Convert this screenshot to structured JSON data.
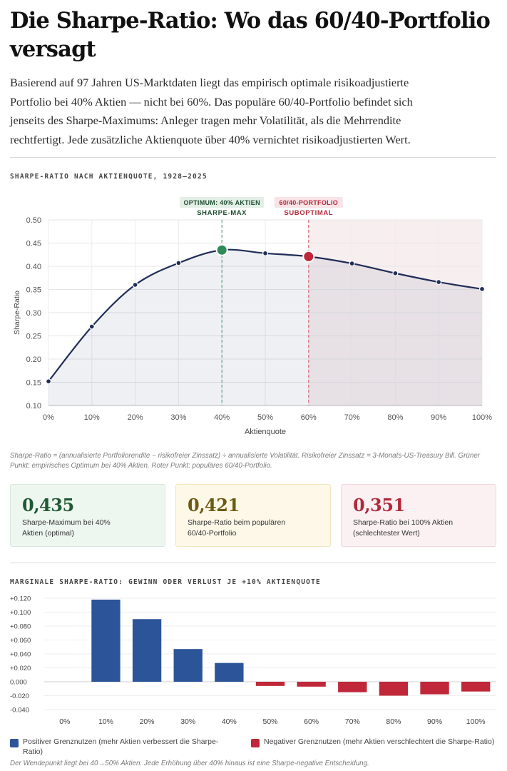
{
  "title": "Die Sharpe-Ratio: Wo das 60/40-Portfolio versagt",
  "lede": "Basierend auf 97 Jahren US-Marktdaten liegt das empirisch optimale risikoadjustierte Portfolio bei 40% Aktien — nicht bei 60%. Das populäre 60/40-Portfolio befindet sich jenseits des Sharpe-Maximums: Anleger tragen mehr Volatilität, als die Mehrrendite rechtfertigt. Jede zusätzliche Aktienquote über 40% vernichtet risikoadjustierten Wert.",
  "chart1_label": "SHARPE-RATIO NACH AKTIENQUOTE, 1928–2025",
  "chart1_note": "Sharpe-Ratio = (annualisierte Portfoliorendite − risikofreier Zinssatz) ÷ annualisierte Volatilität. Risikofreier Zinssatz = 3-Monats-US-Treasury Bill. Grüner Punkt: empirisches Optimum bei 40% Aktien. Roter Punkt: populäres 60/40-Portfolio.",
  "stats": [
    {
      "value": "0,435",
      "desc": "Sharpe-Maximum bei 40% Aktien (optimal)"
    },
    {
      "value": "0,421",
      "desc": "Sharpe-Ratio beim populären 60/40-Portfolio"
    },
    {
      "value": "0,351",
      "desc": "Sharpe-Ratio bei 100% Aktien (schlechtester Wert)"
    }
  ],
  "chart2_label": "MARGINALE SHARPE-RATIO: GEWINN ODER VERLUST JE +10% AKTIENQUOTE",
  "legend": {
    "positive": "Positiver Grenznutzen (mehr Aktien verbessert die Sharpe-Ratio)",
    "negative": "Negativer Grenznutzen (mehr Aktien verschlechtert die Sharpe-Ratio)"
  },
  "chart2_note": "Der Wendepunkt liegt bei 40→50% Aktien. Jede Erhöhung über 40% hinaus ist eine Sharpe-negative Entscheidung.",
  "colors": {
    "navy": "#1f2d57",
    "green": "#2e8b57",
    "red": "#c0283a",
    "blue_bar": "#2c5599",
    "red_bar": "#c0283a"
  },
  "chart_data": [
    {
      "type": "line",
      "title": "SHARPE-RATIO NACH AKTIENQUOTE, 1928–2025",
      "xlabel": "Aktienquote",
      "ylabel": "Sharpe-Ratio",
      "x": [
        0,
        10,
        20,
        30,
        40,
        50,
        60,
        70,
        80,
        90,
        100
      ],
      "x_tick_labels": [
        "0%",
        "10%",
        "20%",
        "30%",
        "40%",
        "50%",
        "60%",
        "70%",
        "80%",
        "90%",
        "100%"
      ],
      "values": [
        0.152,
        0.27,
        0.36,
        0.407,
        0.435,
        0.428,
        0.421,
        0.406,
        0.385,
        0.366,
        0.351
      ],
      "ylim": [
        0.1,
        0.5
      ],
      "y_ticks": [
        "0.10",
        "0.15",
        "0.20",
        "0.25",
        "0.30",
        "0.35",
        "0.40",
        "0.45",
        "0.50"
      ],
      "annotations": [
        {
          "x": 40,
          "line1": "OPTIMUM: 40% AKTIEN",
          "line2": "SHARPE-MAX"
        },
        {
          "x": 60,
          "line1": "60/40-PORTFOLIO",
          "line2": "SUBOPTIMAL"
        }
      ]
    },
    {
      "type": "bar",
      "title": "MARGINALE SHARPE-RATIO: GEWINN ODER VERLUST JE +10% AKTIENQUOTE",
      "categories": [
        "0%",
        "10%",
        "20%",
        "30%",
        "40%",
        "50%",
        "60%",
        "70%",
        "80%",
        "90%",
        "100%"
      ],
      "values": [
        null,
        0.118,
        0.09,
        0.047,
        0.027,
        -0.006,
        -0.007,
        -0.015,
        -0.02,
        -0.018,
        -0.014
      ],
      "ylim": [
        -0.04,
        0.12
      ],
      "y_ticks": [
        "-0.040",
        "-0.020",
        "0.000",
        "+0.020",
        "+0.040",
        "+0.060",
        "+0.080",
        "+0.100",
        "+0.120"
      ]
    }
  ]
}
